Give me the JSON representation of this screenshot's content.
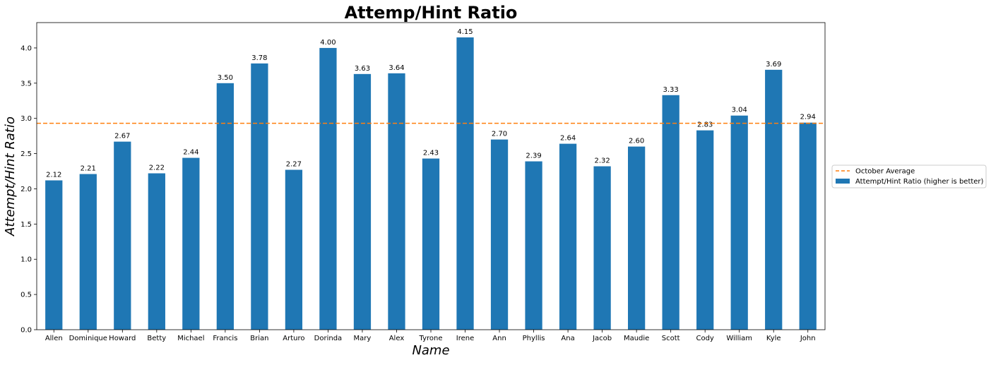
{
  "chart_data": {
    "type": "bar",
    "title": "Attemp/Hint Ratio",
    "xlabel": "Name",
    "ylabel": "Attempt/Hint Ratio",
    "ylim": [
      0,
      4.36
    ],
    "yticks": [
      0.0,
      0.5,
      1.0,
      1.5,
      2.0,
      2.5,
      3.0,
      3.5,
      4.0
    ],
    "ytick_labels": [
      "0.0",
      "0.5",
      "1.0",
      "1.5",
      "2.0",
      "2.5",
      "3.0",
      "3.5",
      "4.0"
    ],
    "grid": false,
    "legend_position": "right",
    "categories": [
      "Allen",
      "Dominique",
      "Howard",
      "Betty",
      "Michael",
      "Francis",
      "Brian",
      "Arturo",
      "Dorinda",
      "Mary",
      "Alex",
      "Tyrone",
      "Irene",
      "Ann",
      "Phyllis",
      "Ana",
      "Jacob",
      "Maudie",
      "Scott",
      "Cody",
      "William",
      "Kyle",
      "John"
    ],
    "series": [
      {
        "name": "Attempt/Hint Ratio (higher is better)",
        "color": "#1f77b4",
        "values": [
          2.12,
          2.21,
          2.67,
          2.22,
          2.44,
          3.5,
          3.78,
          2.27,
          4.0,
          3.63,
          3.64,
          2.43,
          4.15,
          2.7,
          2.39,
          2.64,
          2.32,
          2.6,
          3.33,
          2.83,
          3.04,
          3.69,
          2.94
        ],
        "data_labels": [
          "2.12",
          "2.21",
          "2.67",
          "2.22",
          "2.44",
          "3.50",
          "3.78",
          "2.27",
          "4.00",
          "3.63",
          "3.64",
          "2.43",
          "4.15",
          "2.70",
          "2.39",
          "2.64",
          "2.32",
          "2.60",
          "3.33",
          "2.83",
          "3.04",
          "3.69",
          "2.94"
        ]
      }
    ],
    "reference_line": {
      "name": "October Average",
      "value": 2.93,
      "color": "#ff7f0e",
      "style": "dashed"
    }
  }
}
